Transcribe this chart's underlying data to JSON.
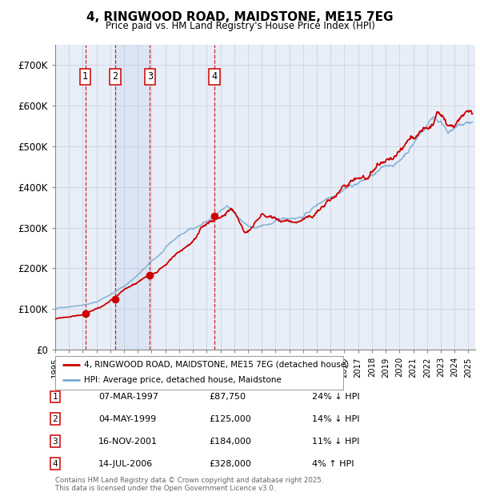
{
  "title": "4, RINGWOOD ROAD, MAIDSTONE, ME15 7EG",
  "subtitle": "Price paid vs. HM Land Registry's House Price Index (HPI)",
  "ylim": [
    0,
    750000
  ],
  "yticks": [
    0,
    100000,
    200000,
    300000,
    400000,
    500000,
    600000,
    700000
  ],
  "ytick_labels": [
    "£0",
    "£100K",
    "£200K",
    "£300K",
    "£400K",
    "£500K",
    "£600K",
    "£700K"
  ],
  "xlim_start": 1995.0,
  "xlim_end": 2025.5,
  "background_color": "#ffffff",
  "plot_bg_color": "#e8eef8",
  "grid_color": "#c8ccd8",
  "hpi_line_color": "#7aaad0",
  "price_line_color": "#cc0000",
  "sale_marker_color": "#cc0000",
  "sale_dashed_color": "#cc0000",
  "sale_box_color": "#cc0000",
  "transactions": [
    {
      "label": "1",
      "date": 1997.18,
      "price": 87750,
      "hpi_pct": "24% ↓ HPI",
      "date_str": "07-MAR-1997",
      "price_str": "£87,750"
    },
    {
      "label": "2",
      "date": 1999.34,
      "price": 125000,
      "hpi_pct": "14% ↓ HPI",
      "date_str": "04-MAY-1999",
      "price_str": "£125,000"
    },
    {
      "label": "3",
      "date": 2001.88,
      "price": 184000,
      "hpi_pct": "11% ↓ HPI",
      "date_str": "16-NOV-2001",
      "price_str": "£184,000"
    },
    {
      "label": "4",
      "date": 2006.54,
      "price": 328000,
      "hpi_pct": "4% ↑ HPI",
      "date_str": "14-JUL-2006",
      "price_str": "£328,000"
    }
  ],
  "footer": "Contains HM Land Registry data © Crown copyright and database right 2025.\nThis data is licensed under the Open Government Licence v3.0.",
  "legend_line1": "4, RINGWOOD ROAD, MAIDSTONE, ME15 7EG (detached house)",
  "legend_line2": "HPI: Average price, detached house, Maidstone"
}
